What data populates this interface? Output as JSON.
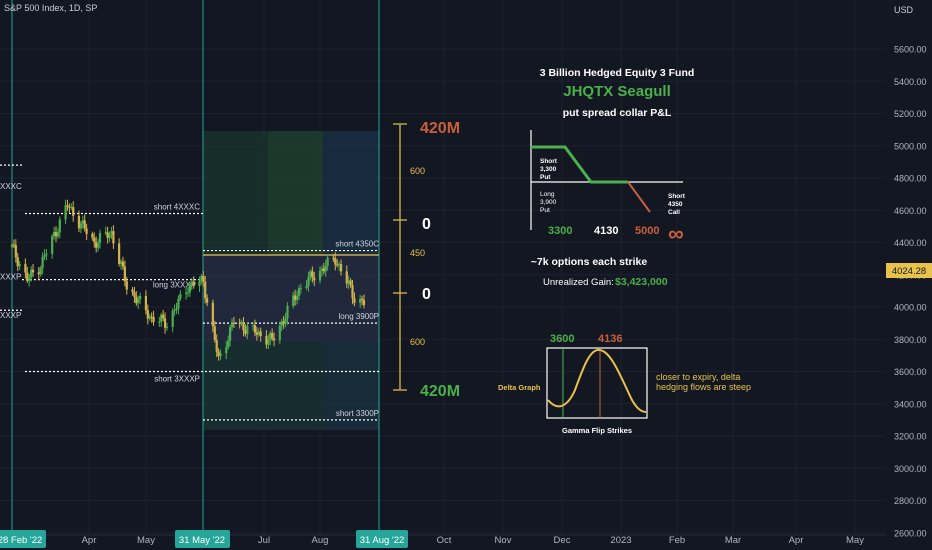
{
  "header": {
    "symbol_title": "S&P 500 Index, 1D, SP",
    "currency": "USD"
  },
  "colors": {
    "background": "#131722",
    "up_candle": "#4caf50",
    "down_candle": "#d4b44a",
    "green_text": "#4ab04a",
    "orange_text": "#c95f3c",
    "yellow_text": "#e8c24a",
    "vertical_line": "#26a69a",
    "price_line": "#e8c24a"
  },
  "chart_data": {
    "type": "candlestick",
    "title": "S&P 500 Index, 1D, SP",
    "currency": "USD",
    "last_price": "4024.28",
    "y_axis": {
      "range": [
        2500,
        5750
      ],
      "ticks": [
        "5600.00",
        "5400.00",
        "5200.00",
        "5000.00",
        "4800.00",
        "4600.00",
        "4400.00",
        "4200.00",
        "4000.00",
        "3800.00",
        "3600.00",
        "3400.00",
        "3200.00",
        "3000.00",
        "2800.00",
        "2600.00"
      ]
    },
    "x_axis": {
      "ticks": [
        "Apr",
        "May",
        "Jul",
        "Aug",
        "Oct",
        "Nov",
        "Dec",
        "2023",
        "Feb",
        "Mar",
        "Apr",
        "May"
      ],
      "highlighted_dates": [
        "28 Feb '22",
        "31 May '22",
        "31 Aug '22"
      ]
    },
    "price_path_approx": [
      [
        "2022-02-28",
        4370
      ],
      [
        "2022-03-08",
        4170
      ],
      [
        "2022-03-15",
        4260
      ],
      [
        "2022-03-29",
        4630
      ],
      [
        "2022-04-12",
        4400
      ],
      [
        "2022-04-21",
        4460
      ],
      [
        "2022-04-29",
        4130
      ],
      [
        "2022-05-12",
        3930
      ],
      [
        "2022-05-20",
        3900
      ],
      [
        "2022-05-31",
        4130
      ],
      [
        "2022-06-08",
        4160
      ],
      [
        "2022-06-16",
        3670
      ],
      [
        "2022-06-24",
        3910
      ],
      [
        "2022-07-14",
        3790
      ],
      [
        "2022-07-29",
        4130
      ],
      [
        "2022-08-16",
        4300
      ],
      [
        "2022-08-26",
        4060
      ],
      [
        "2022-08-31",
        4024
      ]
    ],
    "horizontal_levels": [
      {
        "label": "short 4XXXC",
        "value": 4580
      },
      {
        "label": "long 3XXXP",
        "value": 4170
      },
      {
        "label": "short 3XXXP",
        "value": 3600
      },
      {
        "label": "short 4350C",
        "value": 4350
      },
      {
        "label": "long 3900P",
        "value": 3900
      },
      {
        "label": "short 3300P",
        "value": 3300
      }
    ],
    "left_edge_labels": [
      "XXXC",
      "XXXP",
      "XXXP"
    ],
    "ruler": {
      "top_label": "420M",
      "bottom_label": "420M",
      "segments": [
        "600",
        "0",
        "450",
        "0",
        "600"
      ]
    }
  },
  "annotation": {
    "title": "3 Billion Hedged Equity 3 Fund",
    "fund": "JHQTX Seagull",
    "subtitle": "put spread collar P&L",
    "payoff": {
      "short_put_label": [
        "Short",
        "3,300",
        "Put"
      ],
      "long_put_label": [
        "Long",
        "3,900",
        "Put"
      ],
      "short_call_label": [
        "Short",
        "4350",
        "Call"
      ],
      "strike_left": "3300",
      "strike_mid": "4130",
      "strike_right": "5000",
      "infinity": "∞"
    },
    "options_note": "~7k options each strike",
    "unrealized_label": "Unrealized Gain:",
    "unrealized_value": "$3,423,000",
    "delta": {
      "left_label": "Delta Graph",
      "strike_low": "3600",
      "strike_high": "4136",
      "bottom_label": "Gamma Flip Strikes",
      "note_line1": "closer to expiry, delta",
      "note_line2": "hedging flows are steep"
    }
  }
}
